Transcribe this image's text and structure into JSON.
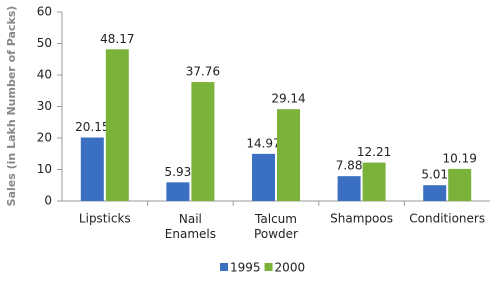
{
  "chart_data": {
    "type": "bar",
    "y_label": "Sales (in Lakh Number of Packs)",
    "categories": [
      "Lipsticks",
      "Nail Enamels",
      "Talcum Powder",
      "Shampoos",
      "Conditioners"
    ],
    "series": [
      {
        "name": "1995",
        "color": "#3b6fc2",
        "values": [
          20.15,
          5.93,
          14.97,
          7.88,
          5.01
        ]
      },
      {
        "name": "2000",
        "color": "#7ab23a",
        "values": [
          48.17,
          37.76,
          29.14,
          12.21,
          10.19
        ]
      }
    ],
    "ylim": [
      0,
      60
    ],
    "yticks": [
      0,
      10,
      20,
      30,
      40,
      50,
      60
    ],
    "grid": false,
    "legend": "bottom"
  }
}
